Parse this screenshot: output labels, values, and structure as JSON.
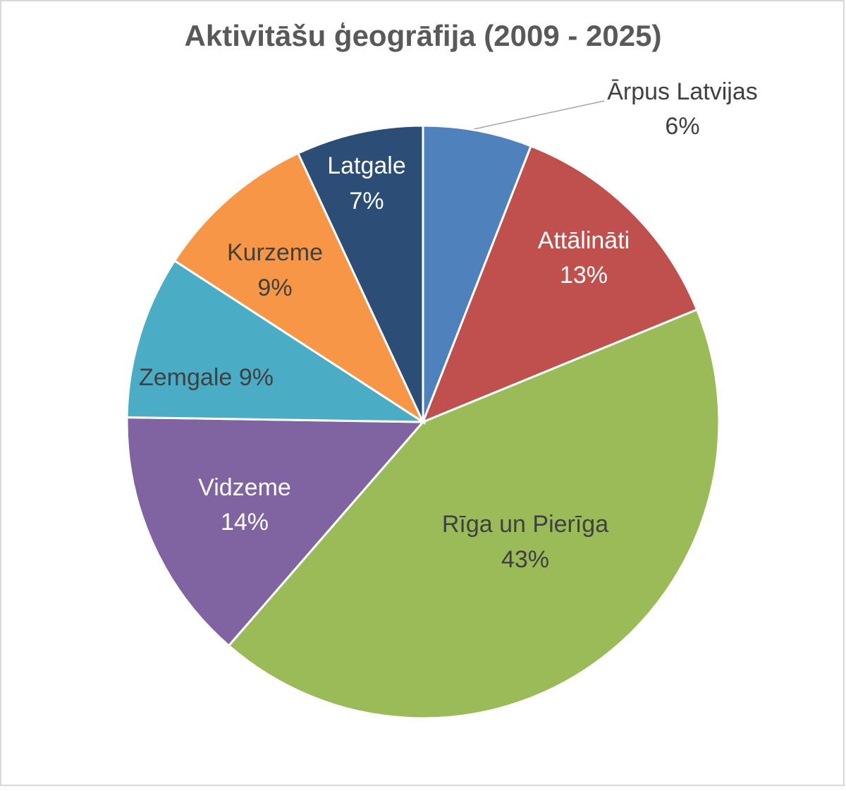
{
  "chart_data": {
    "type": "pie",
    "title": "Aktivitāšu ģeogrāfija (2009 - 2025)",
    "categories": [
      "Ārpus Latvijas",
      "Attālināti",
      "Rīga un Pierīga",
      "Vidzeme",
      "Zemgale",
      "Kurzeme",
      "Latgale"
    ],
    "values": [
      6,
      13,
      43,
      14,
      9,
      9,
      7
    ],
    "value_labels": [
      "6%",
      "13%",
      "43%",
      "14%",
      "9%",
      "9%",
      "7%"
    ],
    "colors": [
      "#4f81bd",
      "#c0504d",
      "#9bbb59",
      "#8064a2",
      "#4bacc6",
      "#f79646",
      "#2c4d75"
    ]
  }
}
